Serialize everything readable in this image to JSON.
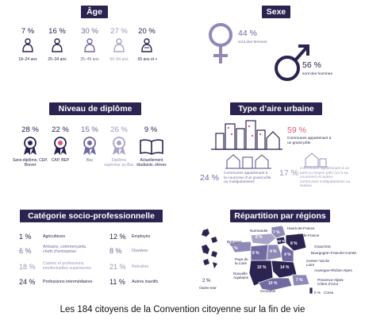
{
  "age": {
    "title": "Âge",
    "items": [
      {
        "pct": "7 %",
        "label": "18–24 ans"
      },
      {
        "pct": "16 %",
        "label": "25–34 ans"
      },
      {
        "pct": "30 %",
        "label": "35–49 ans"
      },
      {
        "pct": "27 %",
        "label": "50–64 ans"
      },
      {
        "pct": "20 %",
        "label": "65 ans et +"
      }
    ]
  },
  "sexe": {
    "title": "Sexe",
    "femmes_pct": "44 %",
    "femmes_label": "sont des femmes",
    "hommes_pct": "56 %",
    "hommes_label": "sont des hommes"
  },
  "diplome": {
    "title": "Niveau de diplôme",
    "items": [
      {
        "pct": "28 %",
        "label": "Sans-diplôme, CEP, Brevet"
      },
      {
        "pct": "22 %",
        "label": "CAP, BEP"
      },
      {
        "pct": "15 %",
        "label": "Bac"
      },
      {
        "pct": "26 %",
        "label": "Diplôme supérieur au Bac"
      },
      {
        "pct": "9 %",
        "label": "Actuellement étudiants, élèves"
      }
    ]
  },
  "urbain": {
    "title": "Type d’aire urbaine",
    "items": [
      {
        "pct": "59 %",
        "label": "Communes appartenant à un grand pôle"
      },
      {
        "pct": "24 %",
        "label": "Communes appartenant à la couronne d’un grand pôle ou multipolarisées"
      },
      {
        "pct": "17 %",
        "label": "Communes appartenant à un petit ou moyen pôle (ou à sa couronne) et autres communes multipolarisées ou isolées"
      }
    ]
  },
  "csp": {
    "title": "Catégorie socio-professionnelle",
    "left": [
      {
        "pct": "1 %",
        "label": "Agriculteurs"
      },
      {
        "pct": "6 %",
        "label": "Artisans, commerçants, chefs d’entreprise"
      },
      {
        "pct": "18 %",
        "label": "Cadres et professions intellectuelles supérieures"
      },
      {
        "pct": "24 %",
        "label": "Professions intermédiaires"
      }
    ],
    "right": [
      {
        "pct": "12 %",
        "label": "Employés"
      },
      {
        "pct": "8 %",
        "label": "Ouvriers"
      },
      {
        "pct": "21 %",
        "label": "Retraités"
      },
      {
        "pct": "11 %",
        "label": "Autres inactifs"
      }
    ]
  },
  "regions": {
    "title": "Répartition par régions",
    "outremer": {
      "pct": "2 %",
      "label": "Outre-mer"
    },
    "labels": [
      "Hauts-de-France",
      "Normandie",
      "Île-de-France",
      "Grand Est",
      "Bretagne",
      "Bourgogne–Franche-Comté",
      "Pays de la Loire",
      "Centre–Val de Loire",
      "Auvergne-Rhône-Alpes",
      "Nouvelle Aquitaine",
      "Provence-Alpes-Côtes d’Azur",
      "Occitanie",
      "Corse"
    ],
    "values": [
      "7 %",
      "6 %",
      "18 %",
      "8 %",
      "5 %",
      "4 %",
      "6 %",
      "4 %",
      "14 %",
      "10 %",
      "7 %",
      "10 %",
      "0 %"
    ]
  },
  "footer": "Les 184 citoyens de la Convention citoyenne sur la fin de vie",
  "colors": {
    "dark": "#2b2350",
    "mid": "#6f6aa0",
    "light": "#a8a4c8",
    "accent": "#e0557a"
  }
}
